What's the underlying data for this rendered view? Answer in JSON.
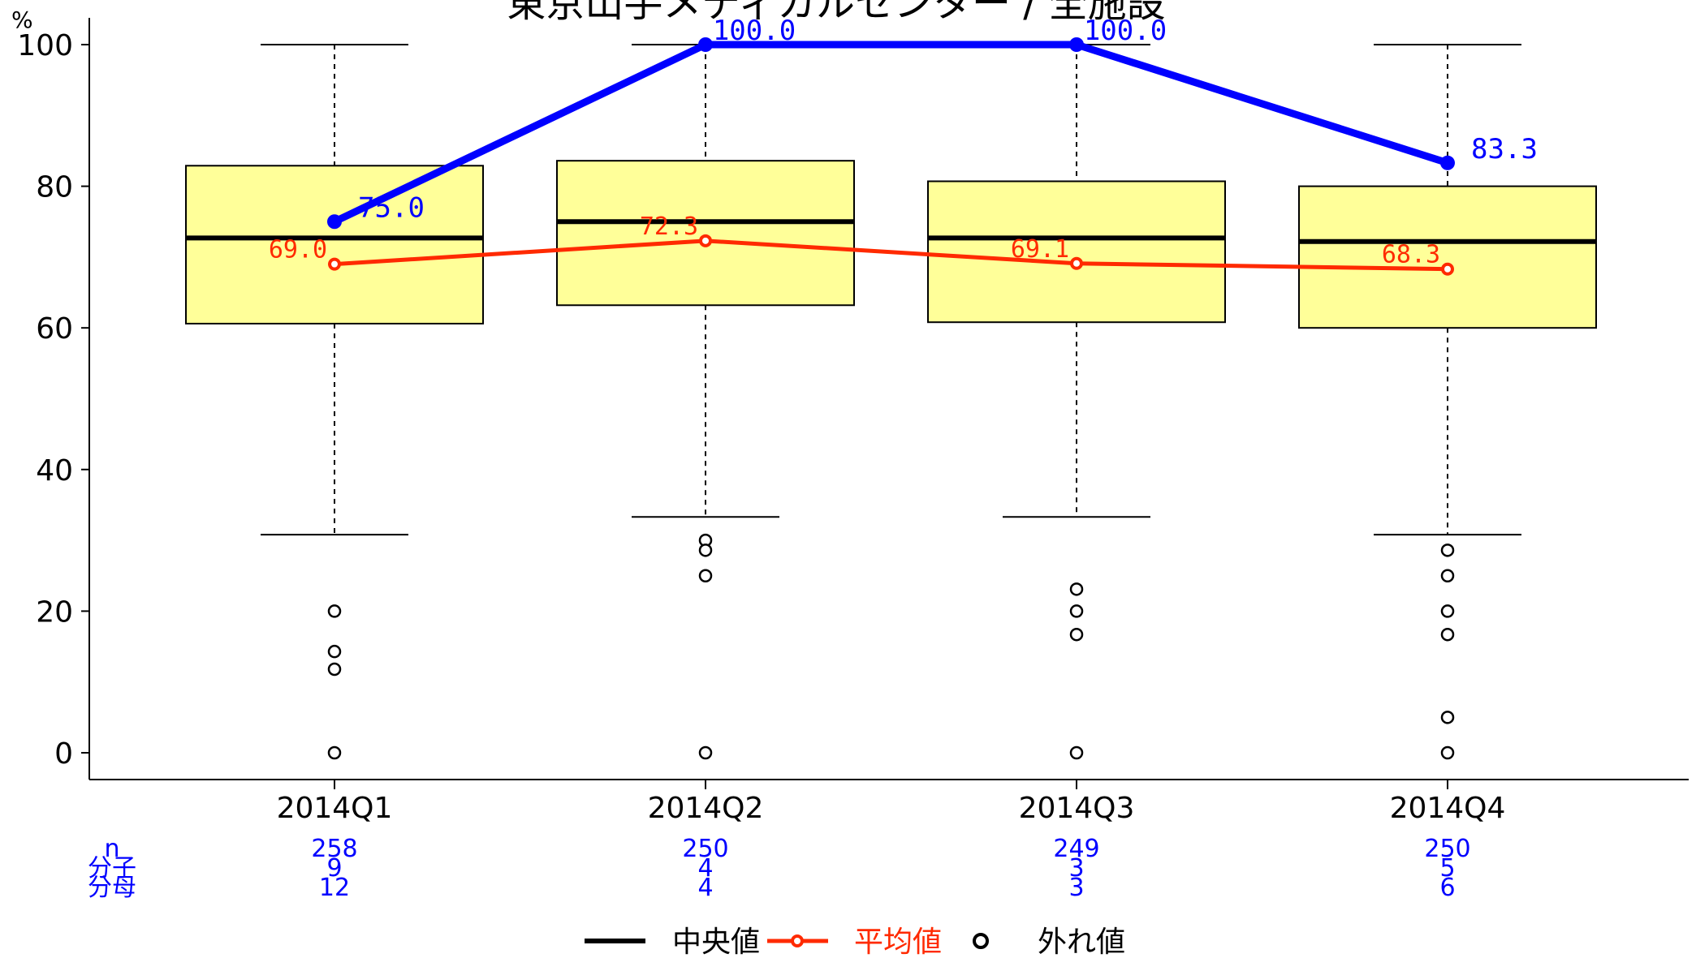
{
  "chart_data": {
    "type": "box",
    "title": "東京山手メディカルセンター / 全施設",
    "ylabel": "%",
    "ylim": [
      -3.5,
      104
    ],
    "yticks": [
      0,
      20,
      40,
      60,
      80,
      100
    ],
    "categories": [
      "2014Q1",
      "2014Q2",
      "2014Q3",
      "2014Q4"
    ],
    "boxes": [
      {
        "category": "2014Q1",
        "whisker_low": 30.8,
        "q1": 60.6,
        "median": 72.7,
        "q3": 82.9,
        "whisker_high": 100,
        "mean": 69.0,
        "outliers": [
          20,
          14.3,
          11.8,
          0
        ]
      },
      {
        "category": "2014Q2",
        "whisker_low": 33.3,
        "q1": 63.2,
        "median": 75.0,
        "q3": 83.6,
        "whisker_high": 100,
        "mean": 72.3,
        "outliers": [
          30,
          28.6,
          25,
          0
        ]
      },
      {
        "category": "2014Q3",
        "whisker_low": 33.3,
        "q1": 60.8,
        "median": 72.7,
        "q3": 80.7,
        "whisker_high": 100,
        "mean": 69.1,
        "outliers": [
          23.1,
          20,
          16.7,
          0
        ]
      },
      {
        "category": "2014Q4",
        "whisker_low": 30.8,
        "q1": 60.0,
        "median": 72.2,
        "q3": 80.0,
        "whisker_high": 100,
        "mean": 68.3,
        "outliers": [
          28.6,
          25,
          20,
          16.7,
          5,
          0
        ]
      }
    ],
    "facility_series": {
      "values": [
        75.0,
        100.0,
        100.0,
        83.3
      ],
      "labels": [
        "75.0",
        "100.0",
        "100.0",
        "83.3"
      ],
      "color": "#0000ff"
    },
    "mean_series": {
      "values": [
        69.0,
        72.3,
        69.1,
        68.3
      ],
      "labels": [
        "69.0",
        "72.3",
        "69.1",
        "68.3"
      ],
      "color": "#ff2a00"
    },
    "counts": {
      "row_labels": [
        "n",
        "分子",
        "分母"
      ],
      "n": [
        "258",
        "250",
        "249",
        "250"
      ],
      "numerator": [
        "9",
        "4",
        "3",
        "5"
      ],
      "denominator": [
        "12",
        "4",
        "3",
        "6"
      ]
    },
    "legend": [
      {
        "label": "中央値",
        "color": "#000000",
        "kind": "line"
      },
      {
        "label": "平均値",
        "color": "#ff2a00",
        "kind": "line-point"
      },
      {
        "label": "外れ値",
        "color": "#000000",
        "kind": "circle"
      }
    ],
    "colors": {
      "box_fill": "#ffff99",
      "facility": "#0000ff",
      "mean": "#ff2a00",
      "axis": "#000000"
    },
    "grid": false,
    "legend_position": "bottom"
  }
}
